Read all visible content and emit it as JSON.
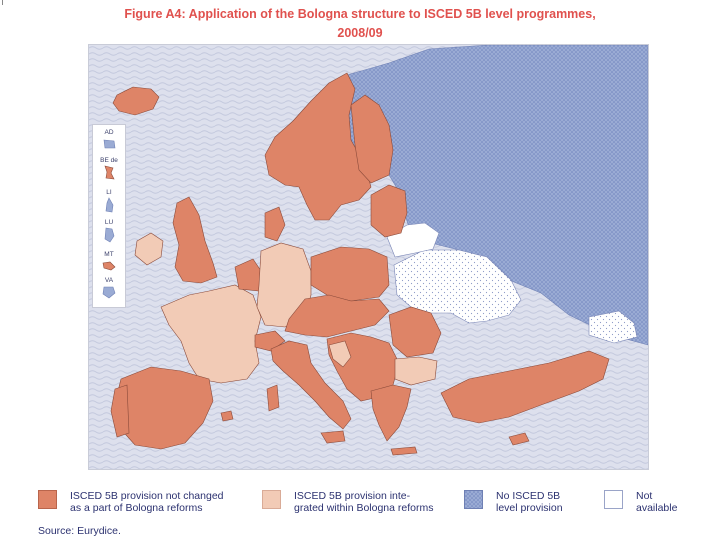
{
  "figure": {
    "title_line1": "Figure A4: Application of the Bologna structure to ISCED 5B level programmes,",
    "title_line2": "2008/09"
  },
  "inset_labels": [
    "AD",
    "BE de",
    "LI",
    "LU",
    "MT",
    "VA"
  ],
  "legend": [
    {
      "line1": "ISCED 5B provision not changed",
      "line2": "as a part of Bologna reforms",
      "color": "#de8467"
    },
    {
      "line1": "ISCED 5B provision inte-",
      "line2": "grated within Bologna reforms",
      "color": "#f2cbb6"
    },
    {
      "line1": "No ISCED 5B",
      "line2": "level provision",
      "color": "#8fa2cf"
    },
    {
      "line1": "Not",
      "line2": "available",
      "color": "#ffffff"
    }
  ],
  "source": "Source: Eurydice.",
  "colors": {
    "not_changed": "#de8467",
    "integrated": "#f2cbb6",
    "no_provision": "#8fa2cf",
    "not_available": "#ffffff",
    "sea": "#dcdfec",
    "title": "#e0514e"
  }
}
